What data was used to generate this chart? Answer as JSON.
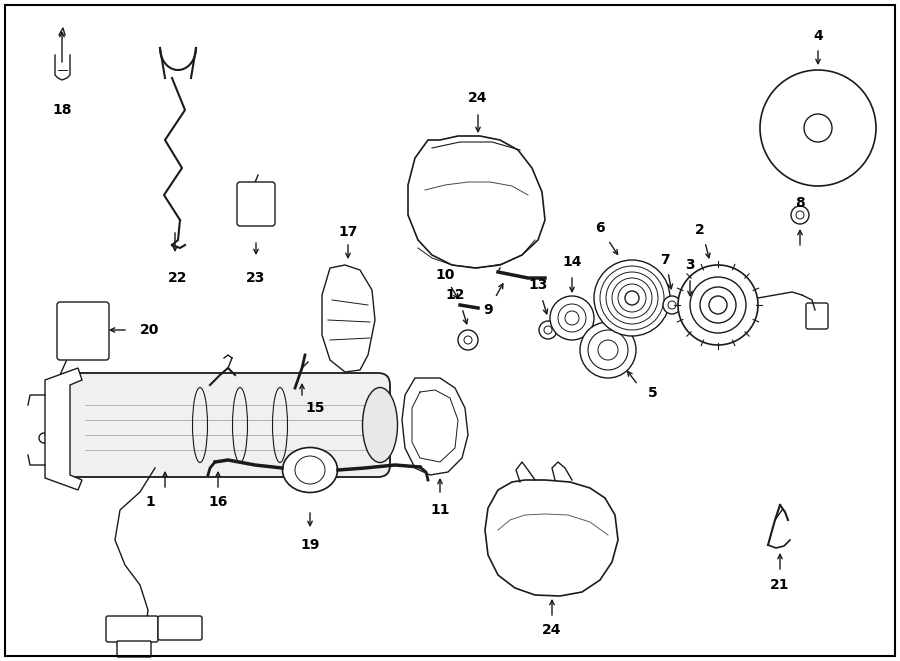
{
  "bg_color": "#ffffff",
  "line_color": "#1a1a1a",
  "fig_width": 9.0,
  "fig_height": 6.61,
  "dpi": 100,
  "border_color": "#000000"
}
